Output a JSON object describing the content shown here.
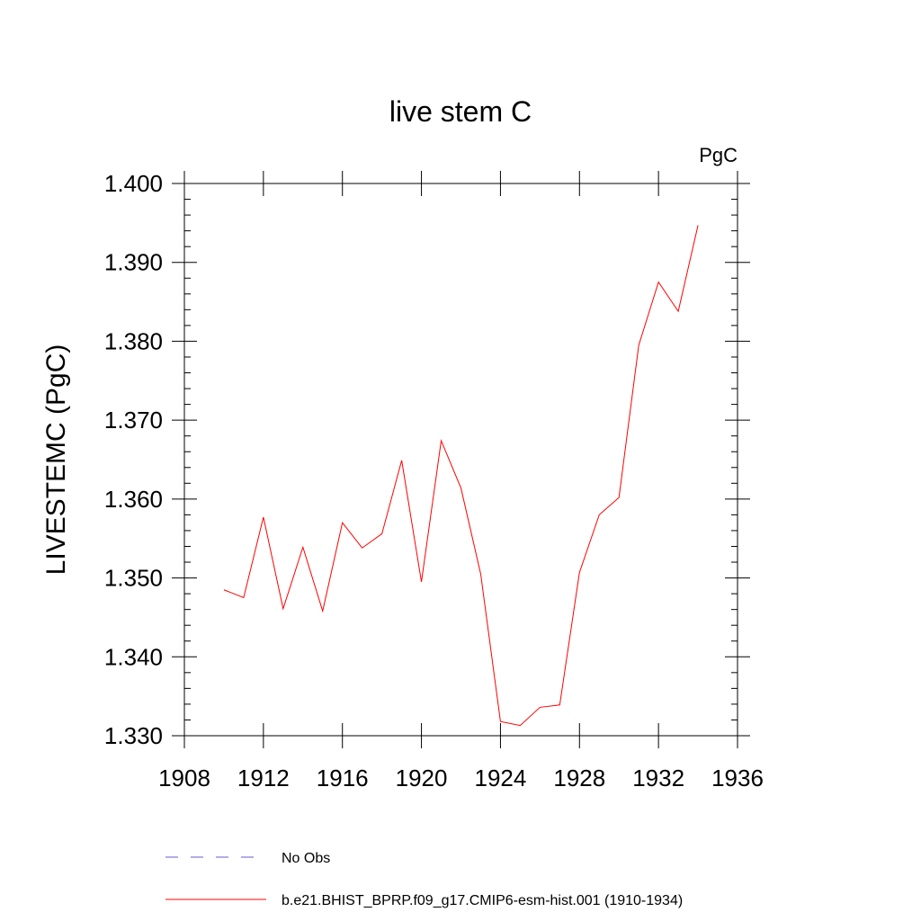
{
  "chart_data": {
    "type": "line",
    "title": "live stem C",
    "units_label": "PgC",
    "xlabel": "",
    "ylabel": "LIVESTEMC  (PgC)",
    "xlim": [
      1908,
      1936
    ],
    "ylim": [
      1.33,
      1.4
    ],
    "x_ticks": [
      1908,
      1912,
      1916,
      1920,
      1924,
      1928,
      1932,
      1936
    ],
    "x_tick_labels": [
      "1908",
      "1912",
      "1916",
      "1920",
      "1924",
      "1928",
      "1932",
      "1936"
    ],
    "y_ticks": [
      1.33,
      1.34,
      1.35,
      1.36,
      1.37,
      1.38,
      1.39,
      1.4
    ],
    "y_tick_labels": [
      "1.330",
      "1.340",
      "1.350",
      "1.360",
      "1.370",
      "1.380",
      "1.390",
      "1.400"
    ],
    "grid": false,
    "legend_position": "bottom",
    "series": [
      {
        "name": "b.e21.BHIST_BPRP.f09_g17.CMIP6-esm-hist.001 (1910-1934)",
        "color": "#ff0000",
        "dash": "solid",
        "x": [
          1910,
          1911,
          1912,
          1913,
          1914,
          1915,
          1916,
          1917,
          1918,
          1919,
          1920,
          1921,
          1922,
          1923,
          1924,
          1925,
          1926,
          1927,
          1928,
          1929,
          1930,
          1931,
          1932,
          1933,
          1934
        ],
        "values": [
          1.3485,
          1.3475,
          1.3577,
          1.3461,
          1.3539,
          1.3458,
          1.357,
          1.3538,
          1.3556,
          1.3649,
          1.3495,
          1.3674,
          1.3614,
          1.3505,
          1.3318,
          1.3313,
          1.3336,
          1.3339,
          1.3507,
          1.358,
          1.3602,
          1.3795,
          1.3875,
          1.3838,
          1.3947
        ]
      }
    ],
    "legend": [
      {
        "label": "No Obs",
        "color": "#6a5acd",
        "dash": "dashed"
      },
      {
        "label": "b.e21.BHIST_BPRP.f09_g17.CMIP6-esm-hist.001 (1910-1934)",
        "color": "#ff0000",
        "dash": "solid"
      }
    ]
  }
}
